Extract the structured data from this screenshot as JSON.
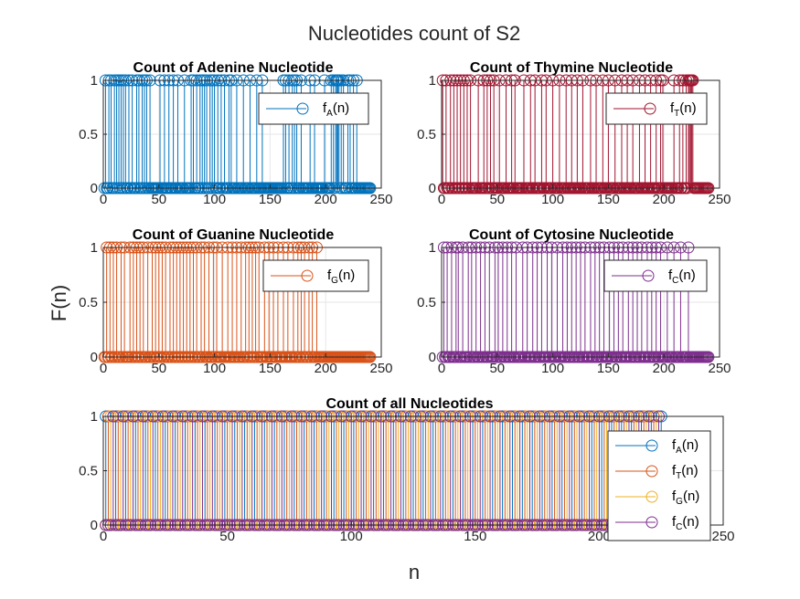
{
  "chart_data": {
    "title": "Nucleotides count of S2",
    "xlabel": "n",
    "ylabel": "F(n)",
    "panels": [
      {
        "id": "adenine",
        "type": "stem",
        "title": "Count of Adenine Nucleotide",
        "xlim": [
          0,
          250
        ],
        "ylim": [
          0,
          1
        ],
        "xticks": [
          "0",
          "50",
          "100",
          "150",
          "200",
          "250"
        ],
        "yticks": [
          "0",
          "0.5",
          "1"
        ],
        "grid": true,
        "legend_position": "top-right",
        "series": [
          {
            "name_base": "f",
            "name_sub": "A",
            "name_tail": "(n)",
            "color": "#0072BD",
            "ones": [
              2,
              5,
              7,
              10,
              12,
              14,
              16,
              18,
              20,
              23,
              26,
              30,
              32,
              35,
              37,
              39,
              42,
              51,
              55,
              59,
              63,
              67,
              73,
              79,
              81,
              84,
              87,
              89,
              91,
              93,
              96,
              98,
              100,
              103,
              106,
              109,
              113,
              115,
              120,
              126,
              132,
              138,
              143,
              162,
              164,
              167,
              170,
              172,
              174,
              178,
              186,
              190,
              199,
              205,
              207,
              209,
              210,
              211,
              212,
              214,
              216,
              220,
              222,
              225,
              228
            ],
            "n": 240
          }
        ]
      },
      {
        "id": "thymine",
        "type": "stem",
        "title": "Count of Thymine Nucleotide",
        "xlim": [
          0,
          250
        ],
        "ylim": [
          0,
          1
        ],
        "xticks": [
          "0",
          "50",
          "100",
          "150",
          "200",
          "250"
        ],
        "yticks": [
          "0",
          "0.5",
          "1"
        ],
        "grid": true,
        "legend_position": "top-right",
        "series": [
          {
            "name_base": "f",
            "name_sub": "T",
            "name_tail": "(n)",
            "color": "#A2142F",
            "ones": [
              1,
              4,
              8,
              11,
              14,
              17,
              20,
              23,
              26,
              33,
              38,
              41,
              44,
              47,
              52,
              58,
              63,
              66,
              74,
              80,
              84,
              90,
              94,
              100,
              106,
              112,
              117,
              122,
              127,
              134,
              139,
              145,
              150,
              156,
              162,
              167,
              172,
              178,
              183,
              188,
              193,
              197,
              199,
              209,
              214,
              217,
              220,
              222,
              223,
              224,
              225,
              226
            ],
            "n": 240
          }
        ]
      },
      {
        "id": "guanine",
        "type": "stem",
        "title": "Count of Guanine Nucleotide",
        "xlim": [
          0,
          250
        ],
        "ylim": [
          0,
          1
        ],
        "xticks": [
          "0",
          "50",
          "100",
          "150",
          "200",
          "250"
        ],
        "yticks": [
          "0",
          "0.5",
          "1"
        ],
        "grid": true,
        "legend_position": "top-right",
        "series": [
          {
            "name_base": "f",
            "name_sub": "G",
            "name_tail": "(n)",
            "color": "#D95319",
            "ones": [
              3,
              6,
              9,
              12,
              16,
              19,
              24,
              27,
              30,
              33,
              36,
              40,
              44,
              47,
              50,
              53,
              56,
              60,
              63,
              66,
              69,
              72,
              75,
              78,
              81,
              84,
              88,
              91,
              95,
              99,
              102,
              107,
              112,
              116,
              120,
              124,
              128,
              131,
              134,
              137,
              140,
              145,
              149,
              153,
              157,
              162,
              166,
              171,
              175,
              178,
              181,
              185,
              188,
              192
            ],
            "n": 240
          }
        ]
      },
      {
        "id": "cytosine",
        "type": "stem",
        "title": "Count of Cytosine Nucleotide",
        "xlim": [
          0,
          250
        ],
        "ylim": [
          0,
          1
        ],
        "xticks": [
          "0",
          "50",
          "100",
          "150",
          "200",
          "250"
        ],
        "yticks": [
          "0",
          "0.5",
          "1"
        ],
        "grid": true,
        "legend_position": "top-right",
        "series": [
          {
            "name_base": "f",
            "name_sub": "C",
            "name_tail": "(n)",
            "color": "#7E2F8E",
            "ones": [
              2,
              5,
              9,
              13,
              15,
              19,
              24,
              27,
              31,
              35,
              39,
              43,
              48,
              51,
              55,
              59,
              63,
              67,
              73,
              77,
              82,
              86,
              90,
              95,
              99,
              104,
              109,
              113,
              117,
              121,
              125,
              129,
              134,
              138,
              142,
              146,
              151,
              155,
              159,
              163,
              168,
              172,
              176,
              180,
              185,
              189,
              193,
              197,
              203,
              209,
              215,
              222
            ],
            "n": 240
          }
        ]
      },
      {
        "id": "all",
        "type": "stem",
        "title": "Count of all Nucleotides",
        "xlim": [
          0,
          250
        ],
        "ylim": [
          0,
          1
        ],
        "xticks": [
          "0",
          "50",
          "100",
          "150",
          "200",
          "250"
        ],
        "yticks": [
          "0",
          "0.5",
          "1"
        ],
        "grid": true,
        "legend_position": "top-right",
        "series": [
          {
            "name_base": "f",
            "name_sub": "A",
            "name_tail": "(n)",
            "color": "#0072BD",
            "pattern_offset": 0,
            "n": 225
          },
          {
            "name_base": "f",
            "name_sub": "T",
            "name_tail": "(n)",
            "color": "#D95319",
            "pattern_offset": 1,
            "n": 225
          },
          {
            "name_base": "f",
            "name_sub": "G",
            "name_tail": "(n)",
            "color": "#EDB120",
            "pattern_offset": 2,
            "n": 225
          },
          {
            "name_base": "f",
            "name_sub": "C",
            "name_tail": "(n)",
            "color": "#7E2F8E",
            "pattern_offset": 3,
            "n": 225
          }
        ]
      }
    ]
  }
}
